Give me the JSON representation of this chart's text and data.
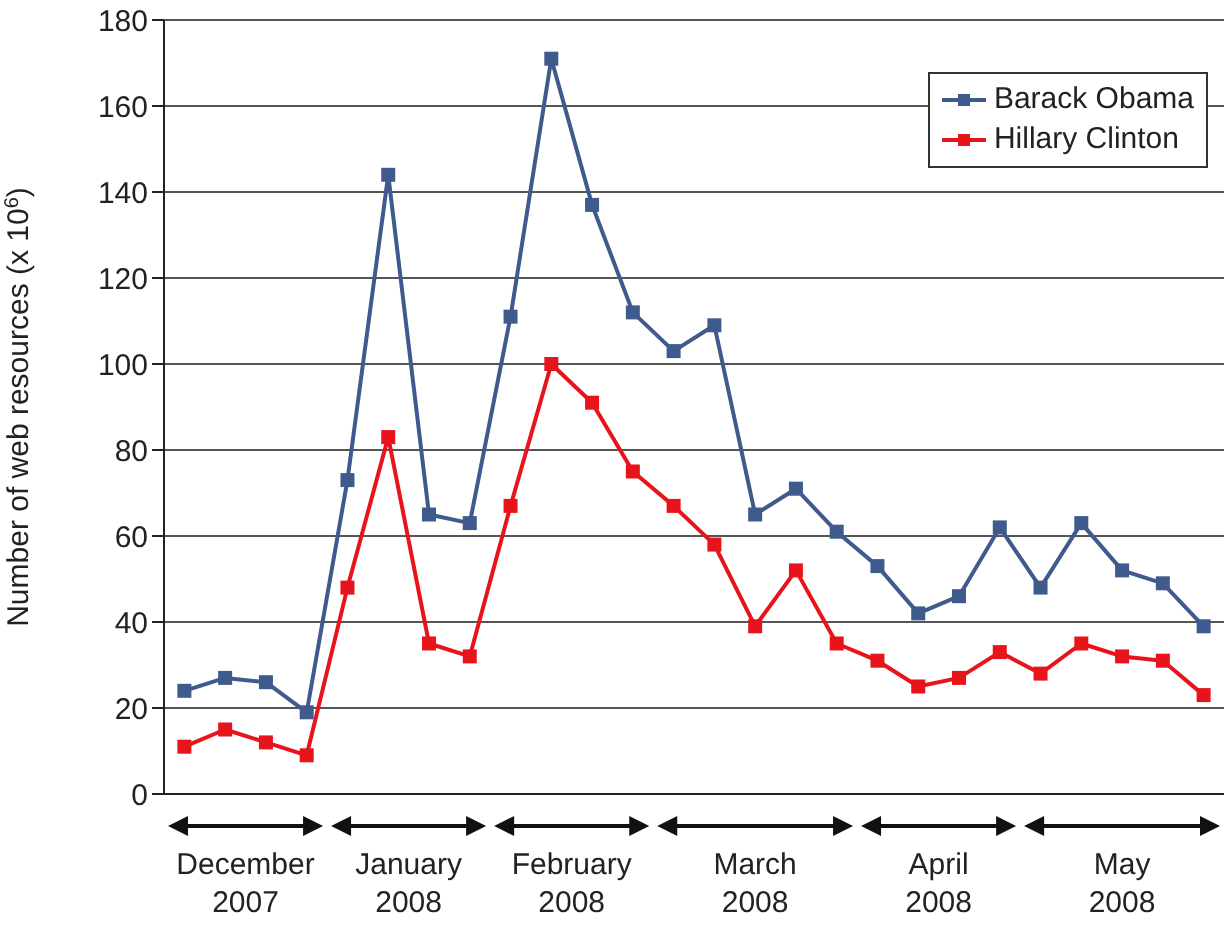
{
  "chart_data": {
    "type": "line",
    "ylabel": "Number of web resources (x 10$^{6}$)",
    "categories": [
      null,
      null,
      null,
      null,
      null,
      null,
      null,
      null,
      null,
      null,
      null,
      null,
      null,
      null,
      null,
      null,
      null,
      null,
      null,
      null,
      null,
      null,
      null,
      null,
      null,
      null
    ],
    "series": [
      {
        "name": "Barack Obama",
        "color": "#3f5a8c",
        "values": [
          24,
          27,
          26,
          19,
          73,
          144,
          65,
          63,
          111,
          171,
          137,
          112,
          103,
          109,
          65,
          71,
          61,
          53,
          42,
          46,
          62,
          48,
          63,
          52,
          49,
          39
        ]
      },
      {
        "name": "Hillary Clinton",
        "color": "#e8141c",
        "values": [
          11,
          15,
          12,
          9,
          48,
          83,
          35,
          32,
          67,
          100,
          91,
          75,
          67,
          58,
          39,
          52,
          35,
          31,
          25,
          27,
          33,
          28,
          35,
          32,
          31,
          23
        ]
      }
    ],
    "ylim": [
      0,
      180
    ],
    "yticks": [
      0,
      20,
      40,
      60,
      80,
      100,
      120,
      140,
      160,
      180
    ],
    "grid": "y",
    "legend": "top right",
    "marker": "square",
    "line_style": "solid",
    "annotations": [
      "December\n2007",
      "January\n2008",
      "February\n2008",
      "March\n2008",
      "April\n2008",
      "May\n2008"
    ]
  }
}
